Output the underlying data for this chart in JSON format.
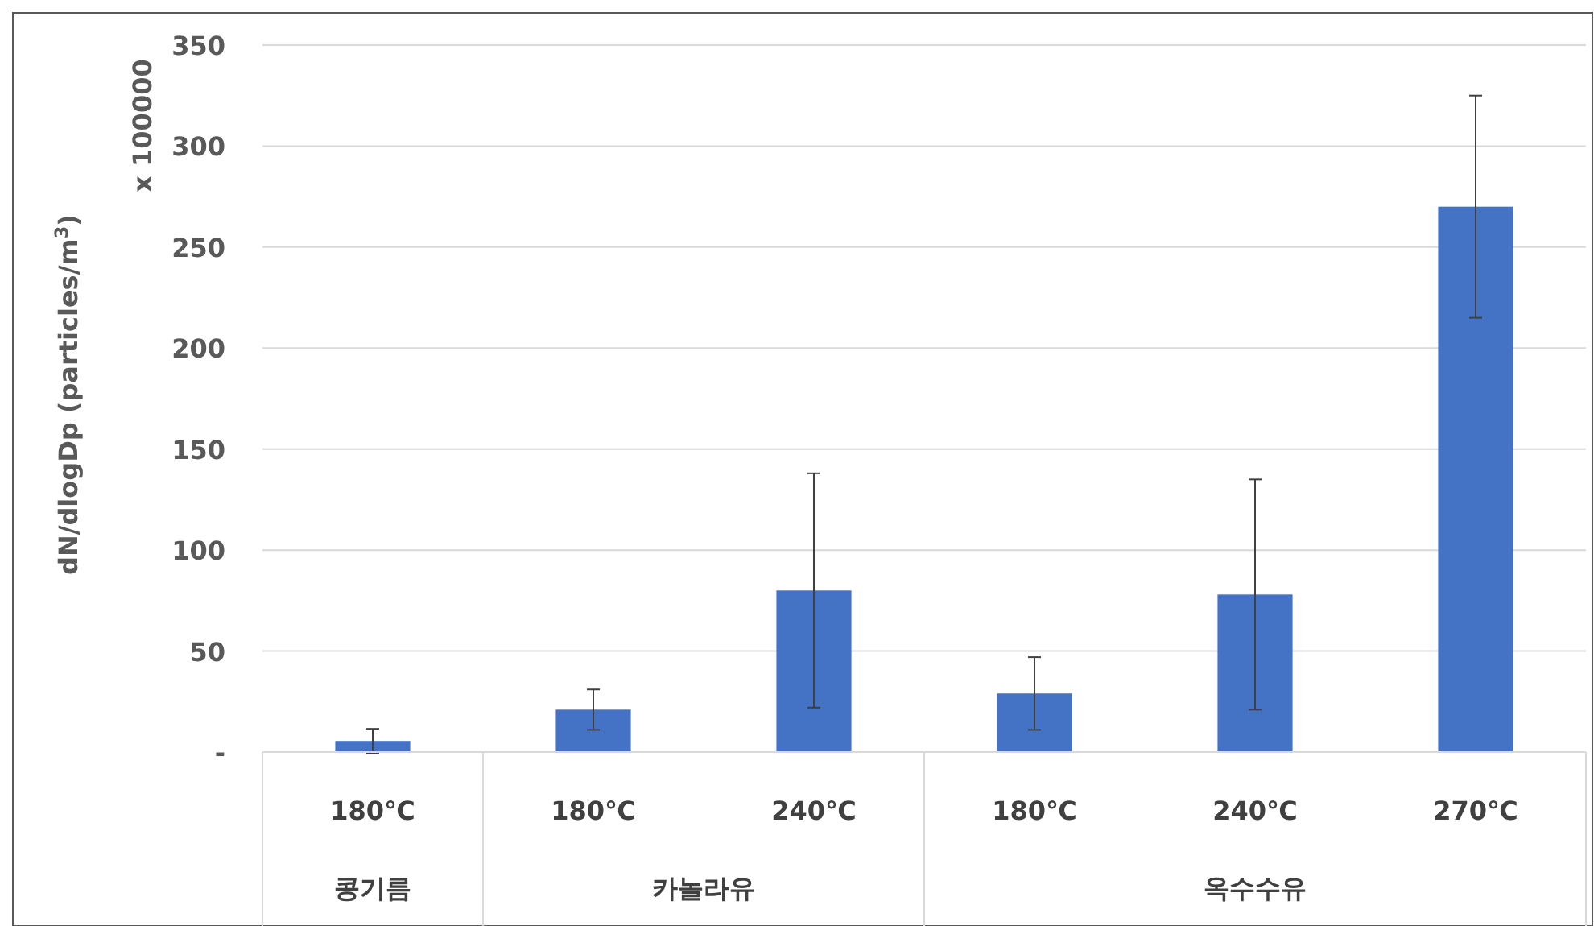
{
  "chart_data": {
    "type": "bar",
    "ylabel": "dN/dlogDp (particles/m$^{3}$)",
    "categories": [
      "180℃",
      "180℃",
      "240℃",
      "180℃",
      "240℃",
      "270℃"
    ],
    "values": [
      5.5,
      21,
      80,
      29,
      78,
      270
    ],
    "errors": [
      6,
      10,
      58,
      18,
      57,
      55
    ],
    "color": "#4472c4",
    "ylim": [
      0,
      350
    ],
    "yticks": [
      {
        "value": 0,
        "label": "-"
      },
      50,
      100,
      150,
      200,
      250,
      300,
      350
    ],
    "grid": "y",
    "annotations": [
      "x 100000",
      "콩기름",
      "카놀라유",
      "옥수수유"
    ]
  }
}
